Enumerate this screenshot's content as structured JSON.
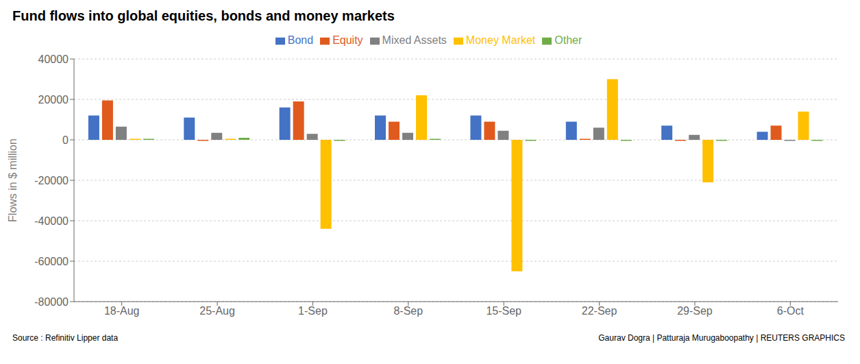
{
  "chart_data": {
    "type": "bar",
    "title": "Fund flows into global equities, bonds and money markets",
    "ylabel": "Flows in $ million",
    "annotations": [
      "Source : Refinitiv Lipper data",
      "Gaurav Dogra | Patturaja Murugaboopathy | REUTERS GRAPHICS"
    ],
    "categories": [
      "18-Aug",
      "25-Aug",
      "1-Sep",
      "8-Sep",
      "15-Sep",
      "22-Sep",
      "29-Sep",
      "6-Oct"
    ],
    "series": [
      {
        "name": "Bond",
        "color": "#4472c4",
        "values": [
          12000,
          11000,
          16000,
          12000,
          12000,
          9000,
          7000,
          4000
        ]
      },
      {
        "name": "Equity",
        "color": "#e05a1e",
        "values": [
          19500,
          -500,
          19000,
          9000,
          9000,
          500,
          -500,
          7000
        ]
      },
      {
        "name": "Mixed Assets",
        "color": "#808080",
        "values": [
          6500,
          3500,
          3000,
          3500,
          4500,
          6000,
          2500,
          -500
        ]
      },
      {
        "name": "Money Market",
        "color": "#ffc000",
        "values": [
          500,
          500,
          -44000,
          22000,
          -65000,
          30000,
          -21000,
          14000
        ]
      },
      {
        "name": "Other",
        "color": "#70ad47",
        "values": [
          500,
          1000,
          -500,
          500,
          -500,
          -500,
          -500,
          -500
        ]
      }
    ],
    "ylim": [
      -80000,
      40000
    ],
    "yticks": [
      -80000,
      -60000,
      -40000,
      -20000,
      0,
      20000,
      40000
    ],
    "grid": true,
    "legend": "top"
  }
}
